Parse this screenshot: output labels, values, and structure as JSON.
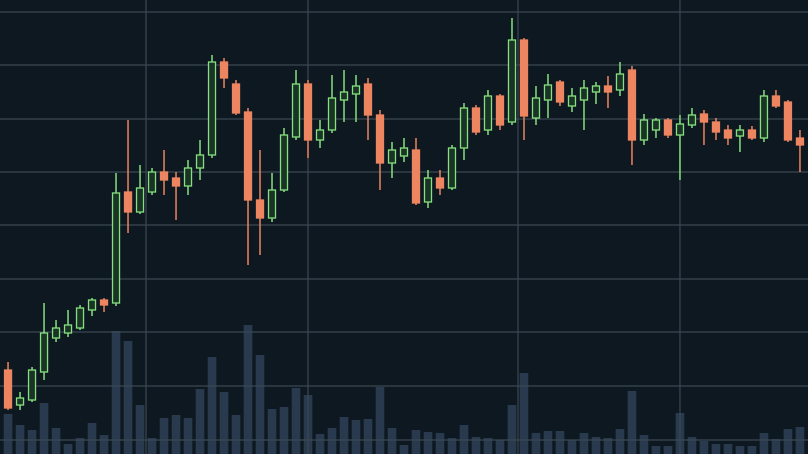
{
  "chart_data": {
    "type": "candlestick",
    "open": [
      84,
      49,
      54,
      82,
      116,
      121,
      126,
      144,
      154,
      151,
      262,
      242,
      262,
      282,
      276,
      268,
      286,
      299,
      392,
      370,
      342,
      254,
      236,
      264,
      317,
      370,
      314,
      324,
      354,
      360,
      370,
      339,
      291,
      298,
      304,
      252,
      276,
      266,
      306,
      346,
      324,
      358,
      332,
      414,
      336,
      354,
      372,
      348,
      354,
      362,
      368,
      364,
      384,
      314,
      324,
      334,
      319,
      329,
      340,
      332,
      324,
      318,
      324,
      316,
      358,
      352,
      316
    ],
    "high": [
      92,
      62,
      87,
      151,
      134,
      144,
      149,
      156,
      156,
      281,
      334,
      289,
      286,
      304,
      282,
      294,
      314,
      399,
      396,
      374,
      346,
      304,
      281,
      326,
      384,
      374,
      334,
      379,
      384,
      379,
      376,
      344,
      312,
      316,
      316,
      284,
      284,
      309,
      351,
      349,
      364,
      360,
      436,
      416,
      368,
      380,
      374,
      366,
      374,
      372,
      378,
      392,
      388,
      340,
      336,
      336,
      339,
      346,
      344,
      336,
      329,
      329,
      328,
      364,
      364,
      354,
      324
    ],
    "low": [
      44,
      44,
      52,
      74,
      112,
      117,
      124,
      138,
      142,
      148,
      221,
      240,
      259,
      259,
      234,
      259,
      274,
      296,
      366,
      339,
      189,
      199,
      232,
      262,
      314,
      296,
      306,
      321,
      332,
      332,
      314,
      264,
      276,
      292,
      249,
      246,
      259,
      264,
      294,
      319,
      319,
      324,
      329,
      314,
      329,
      336,
      348,
      342,
      324,
      350,
      346,
      358,
      289,
      309,
      316,
      316,
      274,
      326,
      309,
      314,
      309,
      302,
      314,
      312,
      346,
      312,
      282
    ],
    "close": [
      46,
      56,
      84,
      121,
      126,
      129,
      146,
      154,
      149,
      261,
      242,
      266,
      282,
      274,
      268,
      286,
      299,
      392,
      376,
      341,
      254,
      236,
      264,
      319,
      370,
      314,
      324,
      356,
      362,
      368,
      339,
      291,
      304,
      306,
      251,
      276,
      266,
      306,
      346,
      322,
      358,
      329,
      414,
      338,
      356,
      369,
      352,
      358,
      366,
      368,
      362,
      380,
      314,
      334,
      334,
      319,
      330,
      339,
      332,
      322,
      316,
      324,
      316,
      358,
      348,
      314,
      309
    ],
    "volume": [
      40,
      29,
      24,
      51,
      26,
      10,
      16,
      31,
      19,
      123,
      113,
      49,
      16,
      36,
      39,
      36,
      65,
      97,
      62,
      39,
      129,
      99,
      45,
      47,
      66,
      59,
      20,
      26,
      37,
      34,
      35,
      67,
      26,
      9,
      24,
      22,
      21,
      16,
      29,
      17,
      16,
      14,
      49,
      81,
      21,
      23,
      23,
      14,
      21,
      17,
      16,
      25,
      63,
      19,
      8,
      8,
      41,
      17,
      13,
      10,
      10,
      8,
      8,
      21,
      15,
      25,
      27
    ],
    "xlim": [
      -0.67,
      66.67
    ],
    "xticks": [
      11.5,
      25,
      42.5,
      56
    ],
    "ylim": [
      0,
      454
    ],
    "yticks": [
      14,
      68,
      122,
      175,
      229,
      282,
      335,
      389,
      442
    ],
    "volume_ylim": [
      0,
      454
    ],
    "grid": true,
    "up_color": "#86e07f",
    "down_color": "#ec8560",
    "volume_color": "#2a3a4e"
  }
}
